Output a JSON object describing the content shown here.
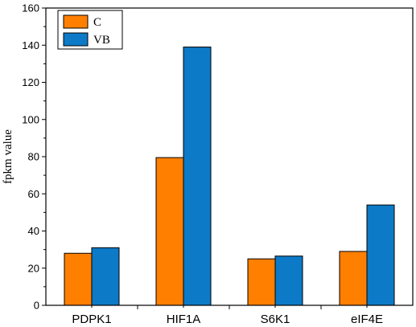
{
  "chart_data": {
    "type": "bar",
    "title": "",
    "xlabel": "",
    "ylabel": "fpkm value",
    "ylim": [
      0,
      160
    ],
    "yticks": [
      "0",
      "20",
      "40",
      "60",
      "80",
      "100",
      "120",
      "140",
      "160"
    ],
    "categories": [
      "PDPK1",
      "HIF1A",
      "S6K1",
      "eIF4E"
    ],
    "series": [
      {
        "name": "C",
        "color": "#ff7f00",
        "values": [
          28,
          79.5,
          25,
          29
        ]
      },
      {
        "name": "VB",
        "color": "#0c7ac7",
        "values": [
          31,
          139,
          26.5,
          54
        ]
      }
    ],
    "legend_position": "top-left",
    "grid": false
  }
}
